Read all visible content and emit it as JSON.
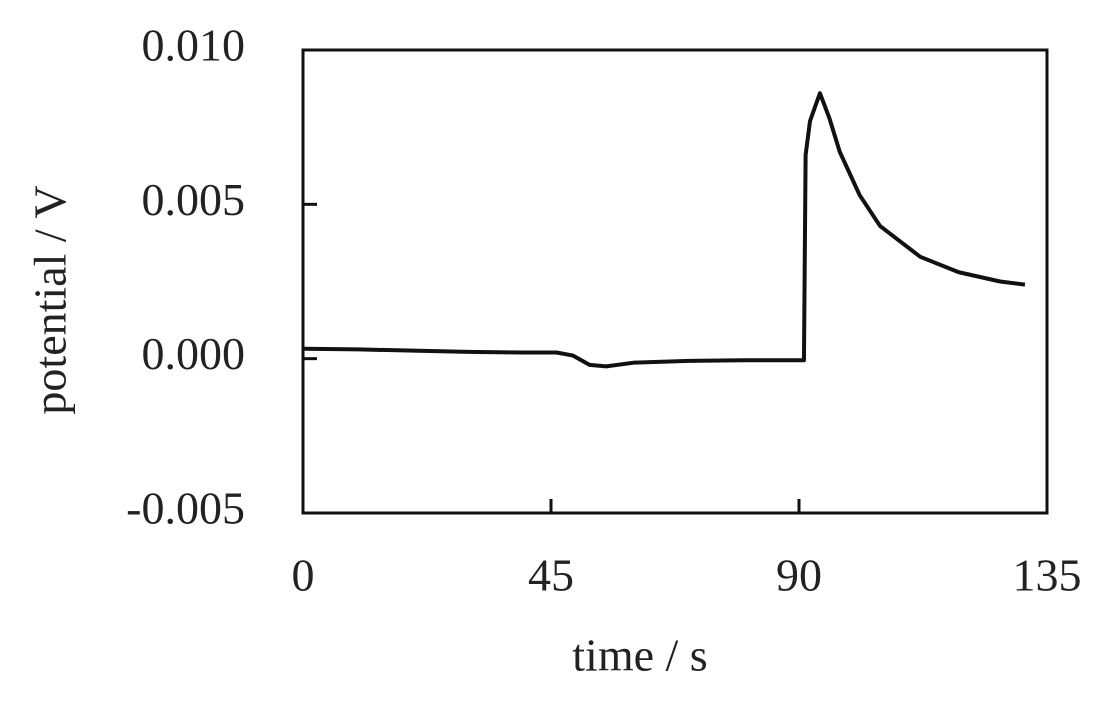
{
  "chart_data": {
    "type": "line",
    "xlabel": "time / s",
    "ylabel": "potential / V",
    "x": [
      0,
      10,
      20,
      30,
      40,
      46,
      49,
      52,
      55,
      60,
      70,
      80,
      90.9,
      91.2,
      92,
      93.8,
      95.5,
      97.4,
      101,
      104.7,
      112,
      119,
      126.5,
      131
    ],
    "series": [
      {
        "name": "potential",
        "color": "#111111",
        "values": [
          0.00032,
          0.0003,
          0.00026,
          0.00022,
          0.0002,
          0.0002,
          0.0001,
          -0.0002,
          -0.00025,
          -0.00013,
          -7e-05,
          -5e-05,
          -5e-05,
          0.0066,
          0.0077,
          0.0086,
          0.0078,
          0.0067,
          0.0053,
          0.0043,
          0.0033,
          0.0028,
          0.0025,
          0.0024
        ]
      }
    ],
    "xlim": [
      0,
      135
    ],
    "xticks": [
      0,
      45,
      90,
      135
    ],
    "ylim": [
      -0.005,
      0.01
    ],
    "yticks": [
      {
        "value": -0.005,
        "label": "-0.005"
      },
      {
        "value": 0,
        "label": "0.000"
      },
      {
        "value": 0.005,
        "label": "0.005"
      },
      {
        "value": 0.01,
        "label": "0.010"
      }
    ],
    "grid": false
  }
}
